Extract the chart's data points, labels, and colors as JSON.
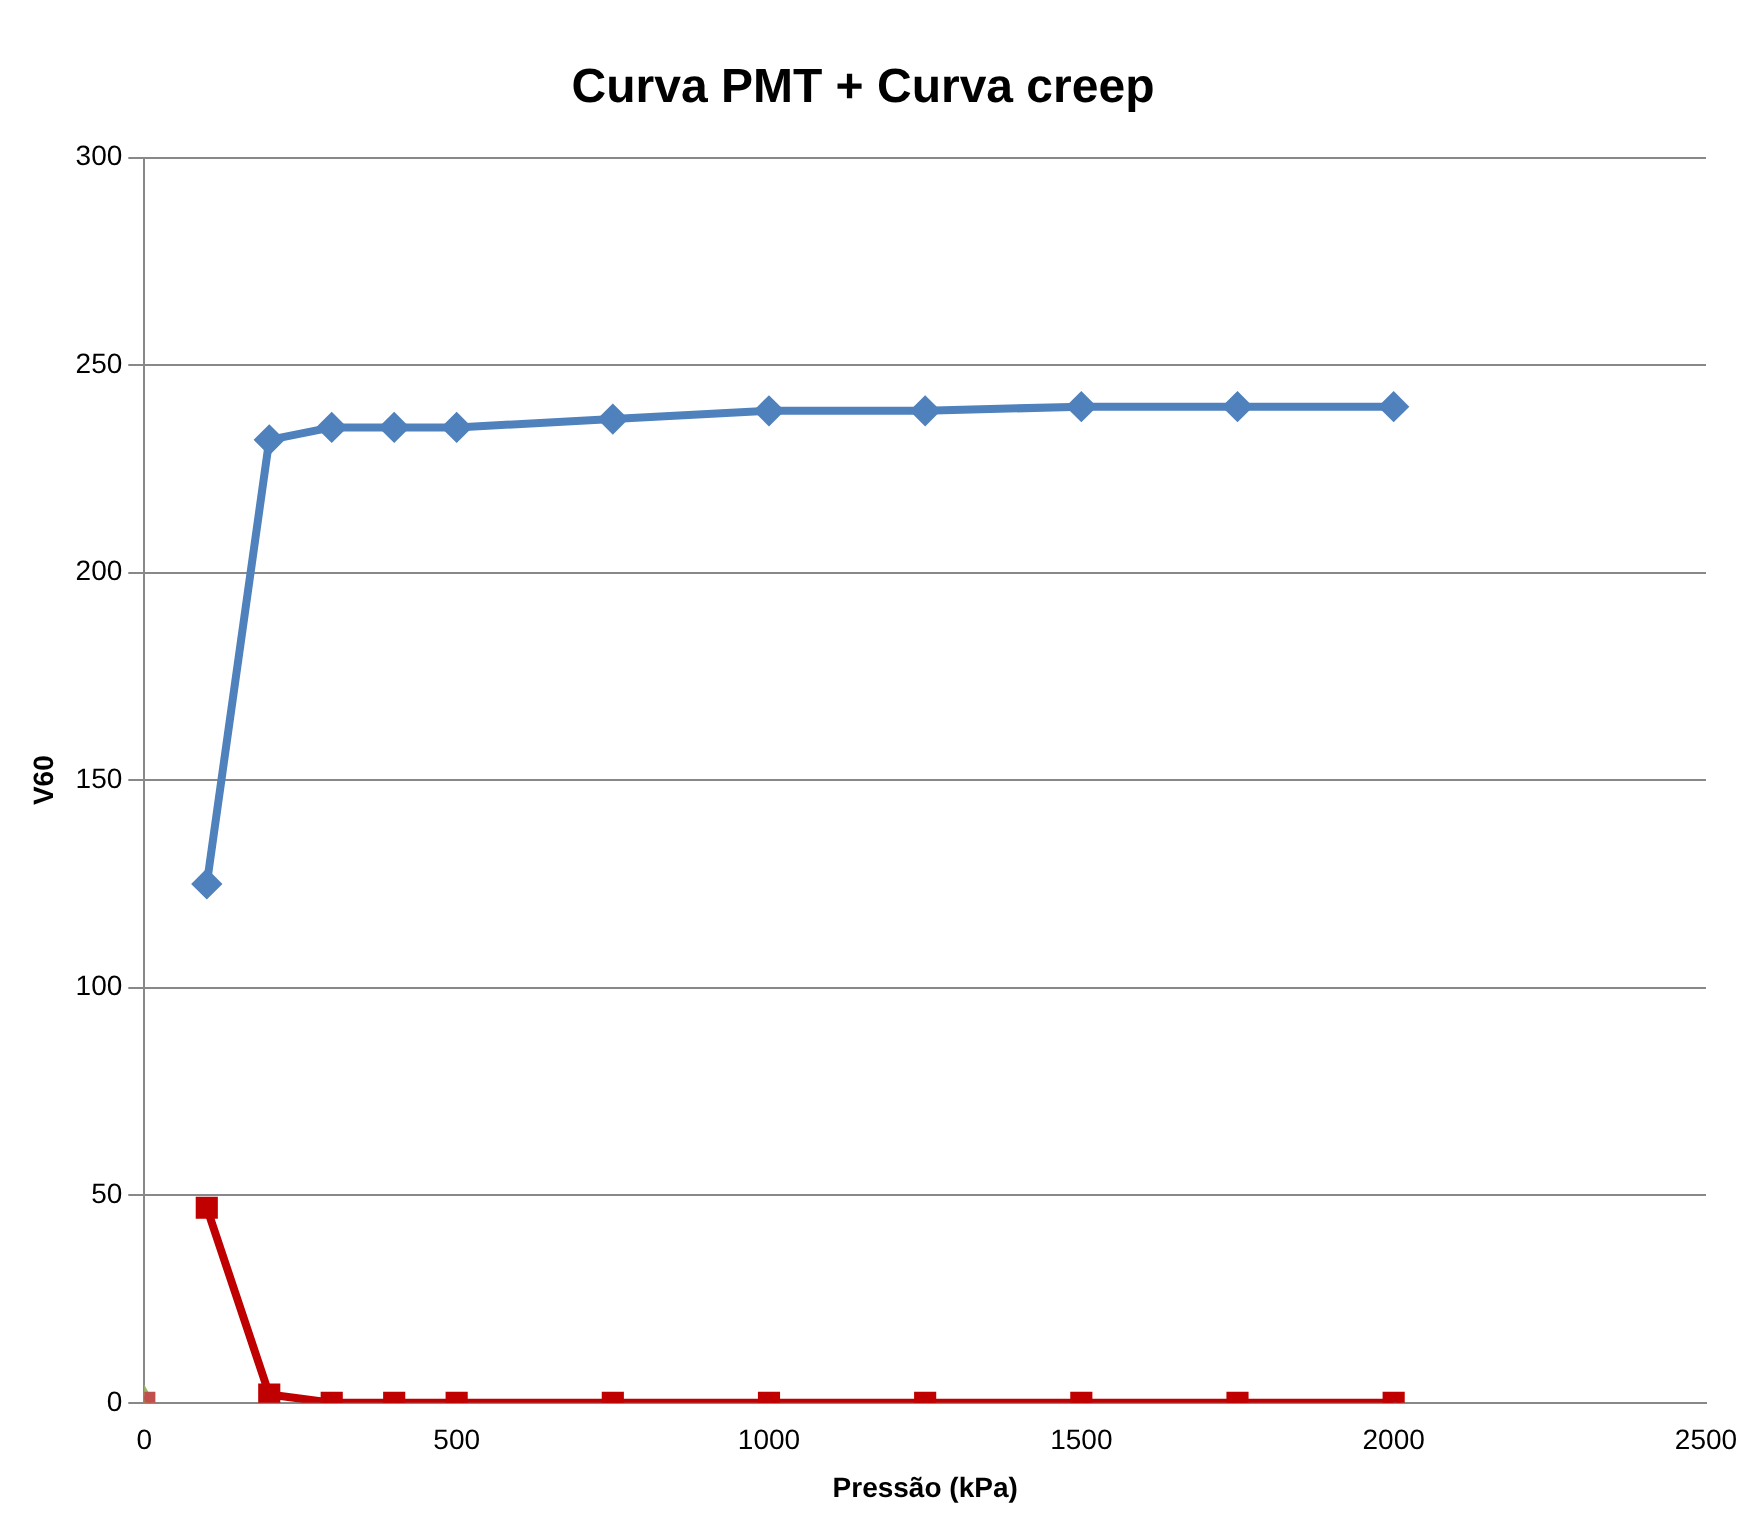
{
  "chart_data": {
    "type": "line",
    "title": "Curva PMT + Curva creep",
    "xlabel": "Pressão (kPa)",
    "ylabel": "V60",
    "xlim": [
      0,
      2500
    ],
    "xticks": [
      0,
      500,
      1000,
      1500,
      2000,
      2500
    ],
    "ylim": [
      0,
      300
    ],
    "yticks": [
      0,
      50,
      100,
      150,
      200,
      250,
      300
    ],
    "grid": "y",
    "legend": false,
    "series": [
      {
        "color": "#4f81bd",
        "marker": "diamond",
        "x": [
          100,
          200,
          300,
          400,
          500,
          750,
          1000,
          1250,
          1500,
          1750,
          2000
        ],
        "values": [
          125,
          232,
          235,
          235,
          235,
          237,
          239,
          239,
          240,
          240,
          240
        ]
      },
      {
        "type": "scatter",
        "color": "#c0504d",
        "marker": "square",
        "x": [
          0
        ],
        "values": [
          0
        ]
      },
      {
        "type": "scatter",
        "color": "#9bbb59",
        "marker": "triangle",
        "x": [
          0
        ],
        "values": [
          0
        ]
      },
      {
        "color": "#c00000",
        "marker": "square",
        "x": [
          100,
          200,
          300,
          400,
          500,
          750,
          1000,
          1250,
          1500,
          1750,
          2000
        ],
        "values": [
          47,
          2,
          0,
          0,
          0,
          0,
          0,
          0,
          0,
          0,
          0
        ]
      }
    ]
  }
}
